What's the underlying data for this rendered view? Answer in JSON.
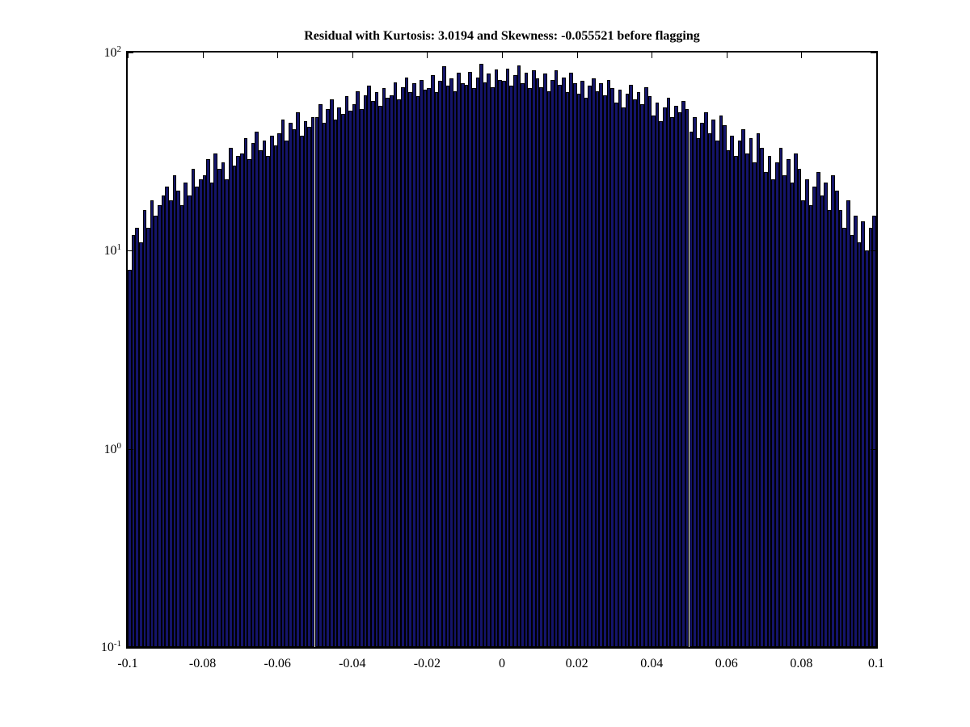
{
  "chart_data": {
    "type": "bar",
    "subtype": "histogram",
    "title": "Residual with Kurtosis: 3.0194 and Skewness: -0.055521 before flagging",
    "xlabel": "",
    "ylabel": "",
    "x_min": -0.1,
    "x_max": 0.1,
    "y_scale": "log10",
    "ylim": [
      0.1,
      100
    ],
    "grid": false,
    "legend": false,
    "bar_color": "#14146a",
    "bar_edge_color": "#000000",
    "x_ticks": [
      -0.1,
      -0.08,
      -0.06,
      -0.04,
      -0.02,
      0,
      0.02,
      0.04,
      0.06,
      0.08,
      0.1
    ],
    "x_tick_labels": [
      "-0.1",
      "-0.08",
      "-0.06",
      "-0.04",
      "-0.02",
      "0",
      "0.02",
      "0.04",
      "0.06",
      "0.08",
      "0.1"
    ],
    "y_ticks": [
      {
        "base": "10",
        "exp": "2",
        "value": 100
      },
      {
        "base": "10",
        "exp": "1",
        "value": 10
      },
      {
        "base": "10",
        "exp": "0",
        "value": 1
      },
      {
        "base": "10",
        "exp": "-1",
        "value": 0.1
      }
    ],
    "n_bins": 200,
    "values": [
      8,
      12,
      13,
      11,
      16,
      13,
      18,
      15,
      17,
      19,
      21,
      18,
      24,
      20,
      17,
      22,
      19,
      26,
      21,
      23,
      24,
      29,
      22,
      31,
      26,
      28,
      23,
      33,
      27,
      30,
      31,
      37,
      29,
      35,
      40,
      32,
      36,
      30,
      38,
      34,
      39,
      46,
      36,
      44,
      41,
      50,
      38,
      45,
      42,
      47,
      47,
      55,
      44,
      52,
      58,
      46,
      53,
      49,
      60,
      51,
      55,
      64,
      52,
      61,
      68,
      57,
      63,
      54,
      66,
      59,
      61,
      71,
      58,
      67,
      75,
      63,
      70,
      60,
      73,
      65,
      66,
      77,
      63,
      72,
      85,
      68,
      74,
      64,
      79,
      70,
      69,
      80,
      66,
      75,
      88,
      71,
      78,
      67,
      82,
      73,
      72,
      83,
      68,
      77,
      86,
      70,
      79,
      66,
      81,
      74,
      67,
      78,
      64,
      73,
      81,
      69,
      75,
      63,
      79,
      70,
      62,
      72,
      59,
      68,
      74,
      64,
      70,
      61,
      73,
      66,
      56,
      65,
      53,
      62,
      69,
      58,
      63,
      55,
      67,
      60,
      48,
      56,
      45,
      53,
      59,
      47,
      54,
      50,
      57,
      52,
      40,
      47,
      37,
      44,
      50,
      39,
      46,
      36,
      48,
      43,
      32,
      38,
      30,
      36,
      41,
      31,
      37,
      28,
      39,
      33,
      25,
      30,
      23,
      28,
      33,
      24,
      29,
      22,
      31,
      26,
      18,
      23,
      17,
      21,
      25,
      19,
      22,
      16,
      24,
      20,
      16,
      13,
      18,
      12,
      15,
      11,
      14,
      10,
      13,
      15
    ]
  }
}
